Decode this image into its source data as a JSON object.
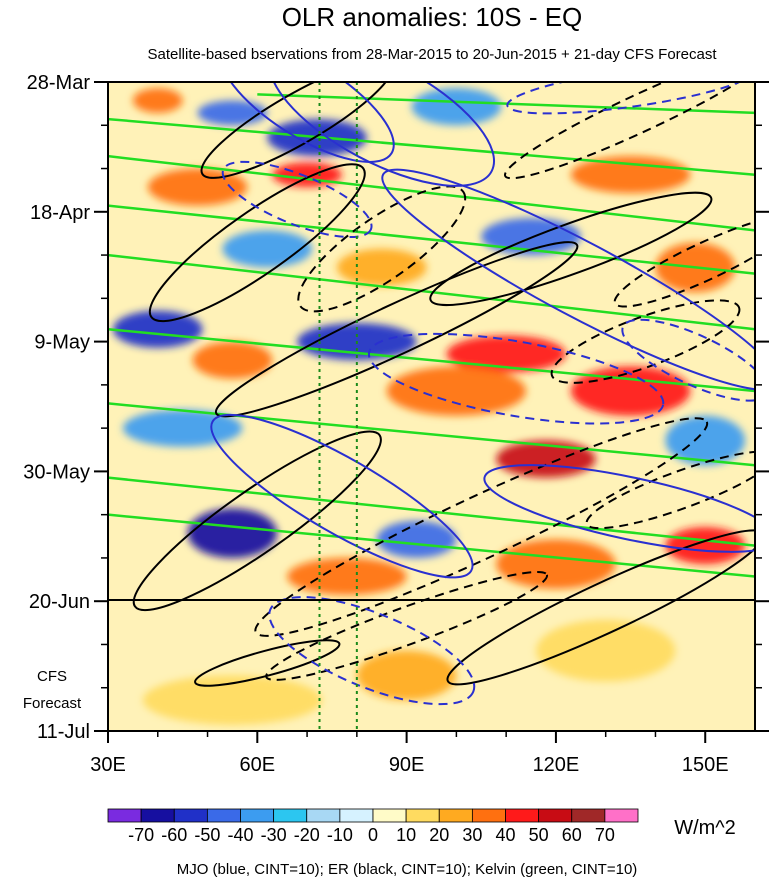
{
  "chart_data": {
    "type": "heatmap",
    "title": "OLR anomalies: 10S - EQ",
    "subtitle": "Satellite-based bservations from 28-Mar-2015 to 20-Jun-2015 + 21-day CFS Forecast",
    "x_ticks": [
      {
        "value": 30,
        "label": "30E"
      },
      {
        "value": 60,
        "label": "60E"
      },
      {
        "value": 90,
        "label": "90E"
      },
      {
        "value": 120,
        "label": "120E"
      },
      {
        "value": 150,
        "label": "150E"
      }
    ],
    "xlim": [
      30,
      160
    ],
    "y_ticks": [
      {
        "day": 0,
        "label": "28-Mar"
      },
      {
        "day": 21,
        "label": "18-Apr"
      },
      {
        "day": 42,
        "label": "9-May"
      },
      {
        "day": 63,
        "label": "30-May"
      },
      {
        "day": 84,
        "label": "20-Jun"
      },
      {
        "day": 105,
        "label": "11-Jul"
      }
    ],
    "ylim_days": [
      0,
      105
    ],
    "observation_end_day": 84,
    "forecast_label": [
      "CFS",
      "Forecast"
    ],
    "reference_lines_lon": [
      72.5,
      80
    ],
    "colorbar": {
      "labels": [
        "-70",
        "-60",
        "-50",
        "-40",
        "-30",
        "-20",
        "-10",
        "0",
        "10",
        "20",
        "30",
        "40",
        "50",
        "60",
        "70"
      ],
      "colors": [
        "#7a2be0",
        "#160fa0",
        "#2030c8",
        "#3a6ae8",
        "#3c9cf0",
        "#2cc6f0",
        "#a8d8f4",
        "#d6f2ff",
        "#fffbc8",
        "#ffdb60",
        "#ffaa20",
        "#ff7010",
        "#ff1a1a",
        "#c80c14",
        "#a02828",
        "#ff70c8"
      ],
      "units": "W/m^2"
    },
    "footer": "MJO (blue, CINT=10); ER (black, CINT=10); Kelvin (green, CINT=10)",
    "contour_series": [
      {
        "name": "MJO",
        "color": "#2a30d0"
      },
      {
        "name": "ER",
        "color": "#000000"
      },
      {
        "name": "Kelvin",
        "color": "#22dd22"
      }
    ],
    "mjo_contours": [
      {
        "lon": 70,
        "day": 3,
        "rlon": 20,
        "rday": 6,
        "angle": 32,
        "dashed": false
      },
      {
        "lon": 85,
        "day": 5,
        "rlon": 25,
        "rday": 8,
        "angle": 28,
        "dashed": false
      },
      {
        "lon": 135,
        "day": 1,
        "rlon": 25,
        "rday": 3,
        "angle": -8,
        "dashed": true
      },
      {
        "lon": 68,
        "day": 19,
        "rlon": 16,
        "rday": 4,
        "angle": 22,
        "dashed": true
      },
      {
        "lon": 125,
        "day": 32,
        "rlon": 45,
        "rday": 6,
        "angle": 28,
        "dashed": false
      },
      {
        "lon": 112,
        "day": 48,
        "rlon": 30,
        "rday": 6,
        "angle": 10,
        "dashed": true
      },
      {
        "lon": 148,
        "day": 45,
        "rlon": 16,
        "rday": 4,
        "angle": 25,
        "dashed": true
      },
      {
        "lon": 77,
        "day": 67,
        "rlon": 30,
        "rday": 6,
        "angle": 30,
        "dashed": false
      },
      {
        "lon": 135,
        "day": 69,
        "rlon": 30,
        "rday": 5,
        "angle": 12,
        "dashed": false
      },
      {
        "lon": 83,
        "day": 92,
        "rlon": 22,
        "rday": 6,
        "angle": 22,
        "dashed": true
      }
    ],
    "er_contours": [
      {
        "lon": 68,
        "day": 6,
        "rlon": 22,
        "rday": 4,
        "angle": -30,
        "dashed": false
      },
      {
        "lon": 60,
        "day": 26,
        "rlon": 26,
        "rday": 5,
        "angle": -35,
        "dashed": false
      },
      {
        "lon": 85,
        "day": 27,
        "rlon": 20,
        "rday": 5,
        "angle": -35,
        "dashed": true
      },
      {
        "lon": 137,
        "day": 5,
        "rlon": 30,
        "rday": 3,
        "angle": -25,
        "dashed": true
      },
      {
        "lon": 123,
        "day": 27,
        "rlon": 30,
        "rday": 4,
        "angle": -20,
        "dashed": false
      },
      {
        "lon": 150,
        "day": 29,
        "rlon": 20,
        "rday": 3,
        "angle": -25,
        "dashed": true
      },
      {
        "lon": 88,
        "day": 40,
        "rlon": 40,
        "rday": 4,
        "angle": -25,
        "dashed": false
      },
      {
        "lon": 138,
        "day": 42,
        "rlon": 20,
        "rday": 4,
        "angle": -20,
        "dashed": true
      },
      {
        "lon": 60,
        "day": 71,
        "rlon": 30,
        "rday": 5,
        "angle": -35,
        "dashed": false
      },
      {
        "lon": 105,
        "day": 72,
        "rlon": 50,
        "rday": 5,
        "angle": -25,
        "dashed": true
      },
      {
        "lon": 62,
        "day": 94,
        "rlon": 15,
        "rday": 2,
        "angle": -15,
        "dashed": false
      },
      {
        "lon": 130,
        "day": 85,
        "rlon": 35,
        "rday": 4,
        "angle": -25,
        "dashed": false
      },
      {
        "lon": 145,
        "day": 66,
        "rlon": 20,
        "rday": 3,
        "angle": -20,
        "dashed": true
      },
      {
        "lon": 90,
        "day": 88,
        "rlon": 30,
        "rday": 3,
        "angle": -20,
        "dashed": true
      }
    ],
    "kelvin_lines": [
      {
        "lon_start": 30,
        "day_start": 6,
        "lon_end": 160,
        "day_end": 15
      },
      {
        "lon_start": 30,
        "day_start": 12,
        "lon_end": 160,
        "day_end": 24
      },
      {
        "lon_start": 30,
        "day_start": 20,
        "lon_end": 160,
        "day_end": 31
      },
      {
        "lon_start": 30,
        "day_start": 28,
        "lon_end": 160,
        "day_end": 40
      },
      {
        "lon_start": 30,
        "day_start": 40,
        "lon_end": 160,
        "day_end": 50
      },
      {
        "lon_start": 30,
        "day_start": 52,
        "lon_end": 160,
        "day_end": 62
      },
      {
        "lon_start": 30,
        "day_start": 64,
        "lon_end": 160,
        "day_end": 75
      },
      {
        "lon_start": 30,
        "day_start": 70,
        "lon_end": 160,
        "day_end": 80
      },
      {
        "lon_start": 60,
        "day_start": 2,
        "lon_end": 160,
        "day_end": 5
      }
    ],
    "anomaly_patches": [
      {
        "lon": 40,
        "day": 3,
        "rlon": 5,
        "rday": 2,
        "value": 35
      },
      {
        "lon": 55,
        "day": 5,
        "rlon": 7,
        "rday": 2,
        "value": -45
      },
      {
        "lon": 72,
        "day": 9,
        "rlon": 10,
        "rday": 3,
        "value": -55
      },
      {
        "lon": 100,
        "day": 4,
        "rlon": 9,
        "rday": 3,
        "value": -40
      },
      {
        "lon": 48,
        "day": 17,
        "rlon": 10,
        "rday": 3,
        "value": 35
      },
      {
        "lon": 70,
        "day": 15,
        "rlon": 7,
        "rday": 2,
        "value": 40
      },
      {
        "lon": 62,
        "day": 27,
        "rlon": 9,
        "rday": 3,
        "value": -40
      },
      {
        "lon": 135,
        "day": 15,
        "rlon": 12,
        "rday": 3,
        "value": 30
      },
      {
        "lon": 115,
        "day": 25,
        "rlon": 10,
        "rday": 3,
        "value": -50
      },
      {
        "lon": 85,
        "day": 30,
        "rlon": 9,
        "rday": 3,
        "value": 25
      },
      {
        "lon": 148,
        "day": 30,
        "rlon": 8,
        "rday": 4,
        "value": 30
      },
      {
        "lon": 40,
        "day": 40,
        "rlon": 9,
        "rday": 3,
        "value": -55
      },
      {
        "lon": 80,
        "day": 42,
        "rlon": 12,
        "rday": 3,
        "value": -60
      },
      {
        "lon": 110,
        "day": 44,
        "rlon": 12,
        "rday": 3,
        "value": 40
      },
      {
        "lon": 55,
        "day": 45,
        "rlon": 8,
        "rday": 3,
        "value": 30
      },
      {
        "lon": 100,
        "day": 50,
        "rlon": 14,
        "rday": 4,
        "value": 35
      },
      {
        "lon": 135,
        "day": 50,
        "rlon": 12,
        "rday": 4,
        "value": 45
      },
      {
        "lon": 45,
        "day": 56,
        "rlon": 12,
        "rday": 3,
        "value": -35
      },
      {
        "lon": 118,
        "day": 61,
        "rlon": 10,
        "rday": 3,
        "value": 55
      },
      {
        "lon": 150,
        "day": 58,
        "rlon": 8,
        "rday": 4,
        "value": -40
      },
      {
        "lon": 55,
        "day": 73,
        "rlon": 9,
        "rday": 4,
        "value": -65
      },
      {
        "lon": 92,
        "day": 74,
        "rlon": 8,
        "rday": 3,
        "value": -50
      },
      {
        "lon": 78,
        "day": 80,
        "rlon": 12,
        "rday": 3,
        "value": 35
      },
      {
        "lon": 120,
        "day": 78,
        "rlon": 12,
        "rday": 4,
        "value": 30
      },
      {
        "lon": 150,
        "day": 75,
        "rlon": 8,
        "rday": 3,
        "value": 40
      },
      {
        "lon": 90,
        "day": 96,
        "rlon": 10,
        "rday": 4,
        "value": 25
      },
      {
        "lon": 130,
        "day": 92,
        "rlon": 14,
        "rday": 5,
        "value": 15
      },
      {
        "lon": 55,
        "day": 100,
        "rlon": 18,
        "rday": 4,
        "value": 15
      }
    ]
  }
}
